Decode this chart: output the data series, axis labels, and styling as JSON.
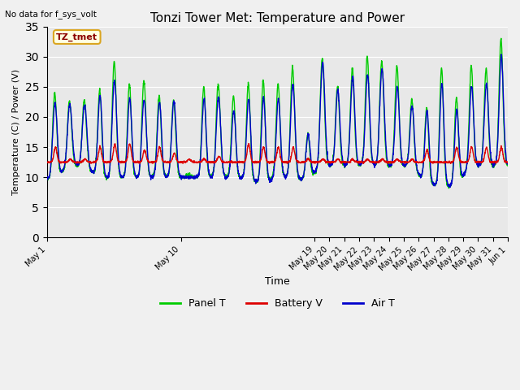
{
  "title": "Tonzi Tower Met: Temperature and Power",
  "ylabel": "Temperature (C) / Power (V)",
  "xlabel": "Time",
  "top_left_text": "No data for f_sys_volt",
  "legend_label": "TZ_tmet",
  "ylim": [
    0,
    35
  ],
  "yticks": [
    0,
    5,
    10,
    15,
    20,
    25,
    30,
    35
  ],
  "fig_bg_color": "#f0f0f0",
  "plot_bg_color": "#e8e8e8",
  "line_colors": {
    "panel": "#00cc00",
    "battery": "#dd0000",
    "air": "#0000cc"
  },
  "legend_entries": [
    "Panel T",
    "Battery V",
    "Air T"
  ],
  "tick_labels": [
    "May 1",
    "May 10",
    "May 19",
    "May 20",
    "May 21",
    "May 22",
    "May 23",
    "May 24",
    "May 25",
    "May 26",
    "May 27",
    "May 28",
    "May 29",
    "May 30",
    "May 31",
    "Jun 1"
  ],
  "tick_positions": [
    0,
    9,
    18,
    19,
    20,
    21,
    22,
    23,
    24,
    25,
    26,
    27,
    28,
    29,
    30,
    31
  ]
}
